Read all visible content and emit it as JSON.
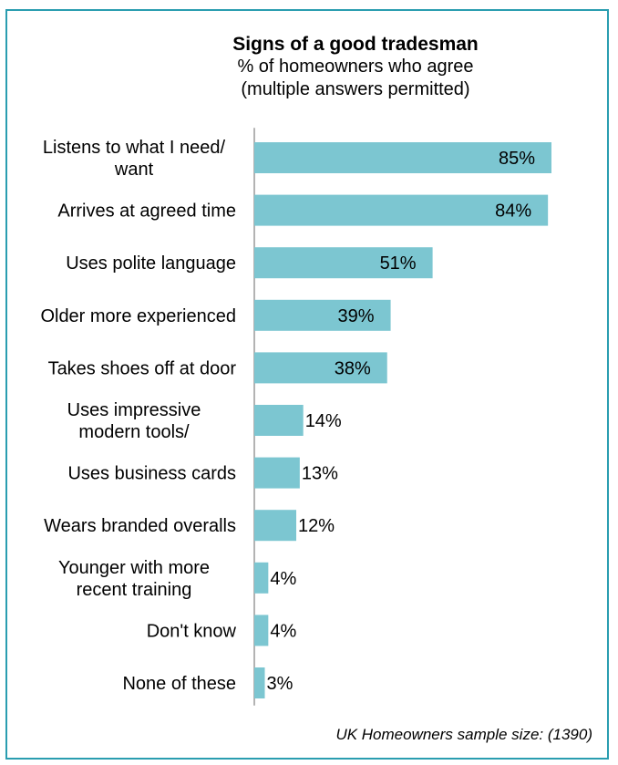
{
  "chart_data": {
    "type": "bar",
    "orientation": "horizontal",
    "title": "Signs of a good tradesman",
    "subtitle_lines": [
      "% of homeowners who agree",
      "(multiple answers permitted)"
    ],
    "categories": [
      [
        "Listens to what I need/",
        "want"
      ],
      [
        "Arrives at agreed time"
      ],
      [
        "Uses polite language"
      ],
      [
        "Older more experienced"
      ],
      [
        "Takes shoes off at door"
      ],
      [
        "Uses impressive",
        "modern tools/"
      ],
      [
        "Uses business cards"
      ],
      [
        "Wears branded overalls"
      ],
      [
        "Younger with more",
        "recent training"
      ],
      [
        "Don't know"
      ],
      [
        "None of these"
      ]
    ],
    "values": [
      85,
      84,
      51,
      39,
      38,
      14,
      13,
      12,
      4,
      4,
      3
    ],
    "value_labels": [
      "85%",
      "84%",
      "51%",
      "39%",
      "38%",
      "14%",
      "13%",
      "12%",
      "4%",
      "4%",
      "3%"
    ],
    "bar_color": "#7cc6d1",
    "axis_color": "#9a9a9a",
    "xlim": [
      0,
      85
    ],
    "grid": false
  },
  "footnote": "UK Homeowners sample size: (1390)",
  "colors": {
    "border": "#2a9db0"
  }
}
